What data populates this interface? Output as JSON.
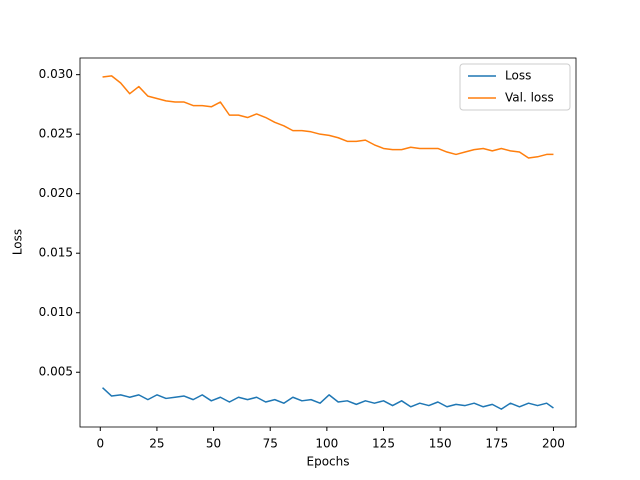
{
  "chart_data": {
    "type": "line",
    "x_label": "Epochs",
    "y_label": "Loss",
    "x": [
      1,
      5,
      9,
      13,
      17,
      21,
      25,
      29,
      33,
      37,
      41,
      45,
      49,
      53,
      57,
      61,
      65,
      69,
      73,
      77,
      81,
      85,
      89,
      93,
      97,
      101,
      105,
      109,
      113,
      117,
      121,
      125,
      129,
      133,
      137,
      141,
      145,
      149,
      153,
      157,
      161,
      165,
      169,
      173,
      177,
      181,
      185,
      189,
      193,
      197,
      200
    ],
    "series": [
      {
        "name": "Loss",
        "color": "#1f77b4",
        "values": [
          0.0037,
          0.003,
          0.0031,
          0.0029,
          0.0031,
          0.0027,
          0.0031,
          0.0028,
          0.0029,
          0.003,
          0.0027,
          0.0031,
          0.0026,
          0.0029,
          0.0025,
          0.0029,
          0.0027,
          0.0029,
          0.0025,
          0.0027,
          0.0024,
          0.0029,
          0.0026,
          0.0027,
          0.0024,
          0.0031,
          0.0025,
          0.0026,
          0.0023,
          0.0026,
          0.0024,
          0.0026,
          0.0022,
          0.0026,
          0.0021,
          0.0024,
          0.0022,
          0.0025,
          0.0021,
          0.0023,
          0.0022,
          0.0024,
          0.0021,
          0.0023,
          0.0019,
          0.0024,
          0.0021,
          0.0024,
          0.0022,
          0.0024,
          0.002
        ]
      },
      {
        "name": "Val. loss",
        "color": "#ff7f0e",
        "values": [
          0.0298,
          0.0299,
          0.0293,
          0.0284,
          0.029,
          0.0282,
          0.028,
          0.0278,
          0.0277,
          0.0277,
          0.0274,
          0.0274,
          0.0273,
          0.0277,
          0.0266,
          0.0266,
          0.0264,
          0.0267,
          0.0264,
          0.026,
          0.0257,
          0.0253,
          0.0253,
          0.0252,
          0.025,
          0.0249,
          0.0247,
          0.0244,
          0.0244,
          0.0245,
          0.0241,
          0.0238,
          0.0237,
          0.0237,
          0.0239,
          0.0238,
          0.0238,
          0.0238,
          0.0235,
          0.0233,
          0.0235,
          0.0237,
          0.0238,
          0.0236,
          0.0238,
          0.0236,
          0.0235,
          0.023,
          0.0231,
          0.0233,
          0.0233
        ]
      }
    ],
    "xlim": [
      -8.95,
      209.95
    ],
    "xticks": [
      0,
      25,
      50,
      75,
      100,
      125,
      150,
      175,
      200
    ],
    "ylim": [
      0.0004,
      0.0314
    ],
    "yticks": [
      0.005,
      {
        "value": 0.01,
        "label": "0.010"
      },
      0.015,
      {
        "value": 0.02,
        "label": "0.020"
      },
      0.025,
      {
        "value": 0.03,
        "label": "0.030"
      }
    ],
    "legend": "upper right"
  }
}
